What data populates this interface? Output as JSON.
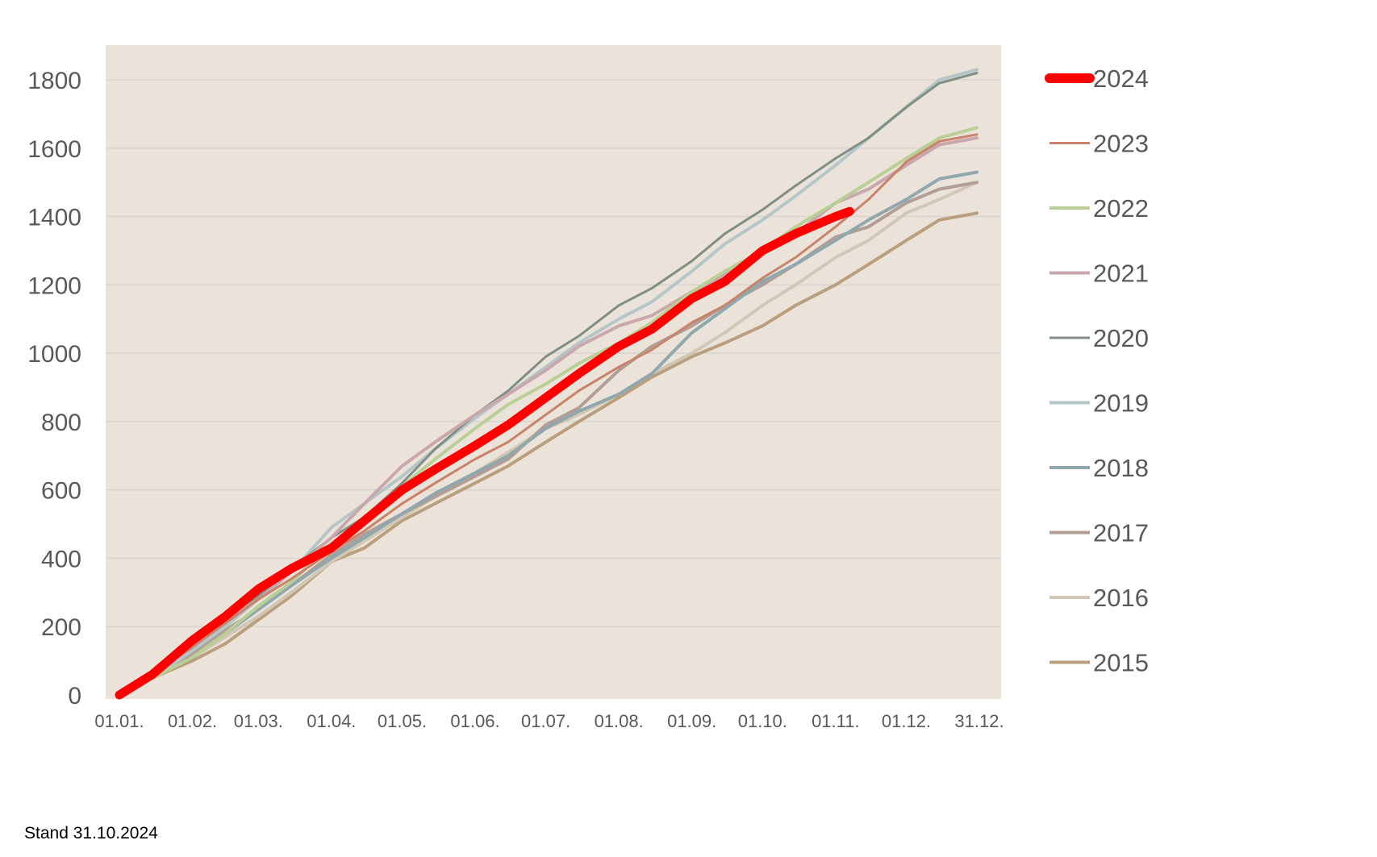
{
  "footnote": "Stand 31.10.2024",
  "chart_data": {
    "type": "line",
    "title": "",
    "xlabel": "",
    "ylabel": "",
    "ylim": [
      0,
      1900
    ],
    "yticks": [
      0,
      200,
      400,
      600,
      800,
      1000,
      1200,
      1400,
      1600,
      1800
    ],
    "xlim": [
      1,
      366
    ],
    "xticks": [
      {
        "day": 1,
        "label": "01.01."
      },
      {
        "day": 32,
        "label": "01.02."
      },
      {
        "day": 60,
        "label": "01.03."
      },
      {
        "day": 91,
        "label": "01.04."
      },
      {
        "day": 121,
        "label": "01.05."
      },
      {
        "day": 152,
        "label": "01.06."
      },
      {
        "day": 182,
        "label": "01.07."
      },
      {
        "day": 213,
        "label": "01.08."
      },
      {
        "day": 244,
        "label": "01.09."
      },
      {
        "day": 274,
        "label": "01.10."
      },
      {
        "day": 305,
        "label": "01.11."
      },
      {
        "day": 335,
        "label": "01.12."
      },
      {
        "day": 366,
        "label": "31.12."
      }
    ],
    "grid": "horizontal",
    "background": "#ebe3d9",
    "legend_position": "right",
    "series": [
      {
        "name": "2024",
        "color": "#ff0000",
        "width": 11,
        "x": [
          1,
          15,
          32,
          46,
          60,
          74,
          91,
          105,
          121,
          135,
          152,
          166,
          182,
          196,
          213,
          227,
          244,
          258,
          274,
          288,
          305,
          311
        ],
        "y": [
          0,
          60,
          160,
          230,
          310,
          370,
          430,
          510,
          600,
          660,
          730,
          790,
          870,
          940,
          1020,
          1070,
          1160,
          1210,
          1300,
          1350,
          1400,
          1415
        ]
      },
      {
        "name": "2023",
        "color": "#c8836a",
        "width": 3,
        "x": [
          1,
          15,
          32,
          46,
          60,
          74,
          91,
          105,
          121,
          135,
          152,
          166,
          182,
          196,
          213,
          227,
          244,
          258,
          274,
          288,
          305,
          319,
          335,
          349,
          365
        ],
        "y": [
          0,
          60,
          140,
          210,
          280,
          340,
          420,
          480,
          560,
          620,
          690,
          740,
          820,
          890,
          960,
          1010,
          1090,
          1140,
          1220,
          1280,
          1370,
          1450,
          1560,
          1620,
          1640
        ]
      },
      {
        "name": "2022",
        "color": "#b9cf96",
        "width": 4,
        "x": [
          1,
          15,
          32,
          46,
          60,
          74,
          91,
          105,
          121,
          135,
          152,
          166,
          182,
          196,
          213,
          227,
          244,
          258,
          274,
          288,
          305,
          319,
          335,
          349,
          365
        ],
        "y": [
          0,
          50,
          110,
          180,
          260,
          330,
          440,
          520,
          610,
          690,
          780,
          850,
          910,
          970,
          1030,
          1090,
          1180,
          1240,
          1300,
          1370,
          1440,
          1500,
          1570,
          1630,
          1660
        ]
      },
      {
        "name": "2021",
        "color": "#c9a7ad",
        "width": 4,
        "x": [
          1,
          15,
          32,
          46,
          60,
          74,
          91,
          105,
          121,
          135,
          152,
          166,
          182,
          196,
          213,
          227,
          244,
          258,
          274,
          288,
          305,
          319,
          335,
          349,
          365
        ],
        "y": [
          0,
          60,
          150,
          220,
          280,
          360,
          460,
          560,
          670,
          740,
          820,
          880,
          950,
          1020,
          1080,
          1110,
          1180,
          1230,
          1300,
          1350,
          1440,
          1480,
          1550,
          1610,
          1630
        ]
      },
      {
        "name": "2020",
        "color": "#7f8f85",
        "width": 3,
        "x": [
          1,
          15,
          32,
          46,
          60,
          74,
          91,
          105,
          121,
          135,
          152,
          166,
          182,
          196,
          213,
          227,
          244,
          258,
          274,
          288,
          305,
          319,
          335,
          349,
          365
        ],
        "y": [
          0,
          60,
          140,
          210,
          290,
          370,
          460,
          520,
          620,
          720,
          820,
          890,
          990,
          1050,
          1140,
          1190,
          1270,
          1350,
          1420,
          1490,
          1570,
          1630,
          1720,
          1790,
          1820
        ]
      },
      {
        "name": "2019",
        "color": "#b5c6c8",
        "width": 4,
        "x": [
          1,
          15,
          32,
          46,
          60,
          74,
          91,
          105,
          121,
          135,
          152,
          166,
          182,
          196,
          213,
          227,
          244,
          258,
          274,
          288,
          305,
          319,
          335,
          349,
          365
        ],
        "y": [
          0,
          50,
          130,
          200,
          280,
          360,
          490,
          560,
          640,
          720,
          810,
          880,
          960,
          1030,
          1100,
          1150,
          1240,
          1320,
          1390,
          1460,
          1550,
          1630,
          1720,
          1800,
          1830
        ]
      },
      {
        "name": "2018",
        "color": "#8fa7ad",
        "width": 4,
        "x": [
          1,
          15,
          32,
          46,
          60,
          74,
          91,
          105,
          121,
          135,
          152,
          166,
          182,
          196,
          213,
          227,
          244,
          258,
          274,
          288,
          305,
          319,
          335,
          349,
          365
        ],
        "y": [
          0,
          50,
          110,
          180,
          250,
          320,
          400,
          460,
          530,
          590,
          650,
          700,
          780,
          830,
          880,
          940,
          1060,
          1130,
          1210,
          1260,
          1330,
          1390,
          1450,
          1510,
          1530
        ]
      },
      {
        "name": "2017",
        "color": "#b39e96",
        "width": 4,
        "x": [
          1,
          15,
          32,
          46,
          60,
          74,
          91,
          105,
          121,
          135,
          152,
          166,
          182,
          196,
          213,
          227,
          244,
          258,
          274,
          288,
          305,
          319,
          335,
          349,
          365
        ],
        "y": [
          0,
          50,
          120,
          190,
          250,
          320,
          410,
          470,
          530,
          580,
          640,
          690,
          790,
          840,
          950,
          1020,
          1080,
          1140,
          1200,
          1260,
          1340,
          1370,
          1440,
          1480,
          1500
        ]
      },
      {
        "name": "2016",
        "color": "#d2c7b5",
        "width": 4,
        "x": [
          1,
          15,
          32,
          46,
          60,
          74,
          91,
          105,
          121,
          135,
          152,
          166,
          182,
          196,
          213,
          227,
          244,
          258,
          274,
          288,
          305,
          319,
          335,
          349,
          365
        ],
        "y": [
          0,
          50,
          110,
          170,
          230,
          300,
          390,
          450,
          520,
          580,
          650,
          710,
          780,
          820,
          880,
          940,
          1000,
          1060,
          1140,
          1200,
          1280,
          1330,
          1410,
          1450,
          1500
        ]
      },
      {
        "name": "2015",
        "color": "#b99f7d",
        "width": 4,
        "x": [
          1,
          15,
          32,
          46,
          60,
          74,
          91,
          105,
          121,
          135,
          152,
          166,
          182,
          196,
          213,
          227,
          244,
          258,
          274,
          288,
          305,
          319,
          335,
          349,
          365
        ],
        "y": [
          0,
          50,
          100,
          150,
          220,
          290,
          390,
          430,
          510,
          560,
          620,
          670,
          740,
          800,
          870,
          930,
          990,
          1030,
          1080,
          1140,
          1200,
          1260,
          1330,
          1390,
          1410
        ]
      }
    ]
  }
}
